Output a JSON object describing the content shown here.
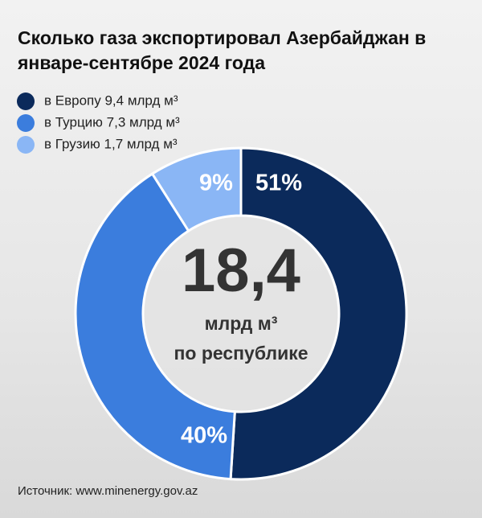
{
  "chart_data": {
    "type": "donut",
    "title": "Сколько газа экспортировал Азербайджан в январе-сентябре 2024 года",
    "categories": [
      "в Европу 9,4 млрд м³",
      "в Турцию 7,3 млрд м³",
      "в Грузию 1,7 млрд м³"
    ],
    "values": [
      51,
      40,
      9
    ],
    "value_labels": [
      "51%",
      "40%",
      "9%"
    ],
    "colors": [
      "#0b2a5b",
      "#3b7ddd",
      "#8ab6f5"
    ],
    "center_value": "18,4",
    "center_unit": "млрд м³",
    "center_caption": "по республике",
    "source": "Источник: www.minenergy.gov.az"
  }
}
